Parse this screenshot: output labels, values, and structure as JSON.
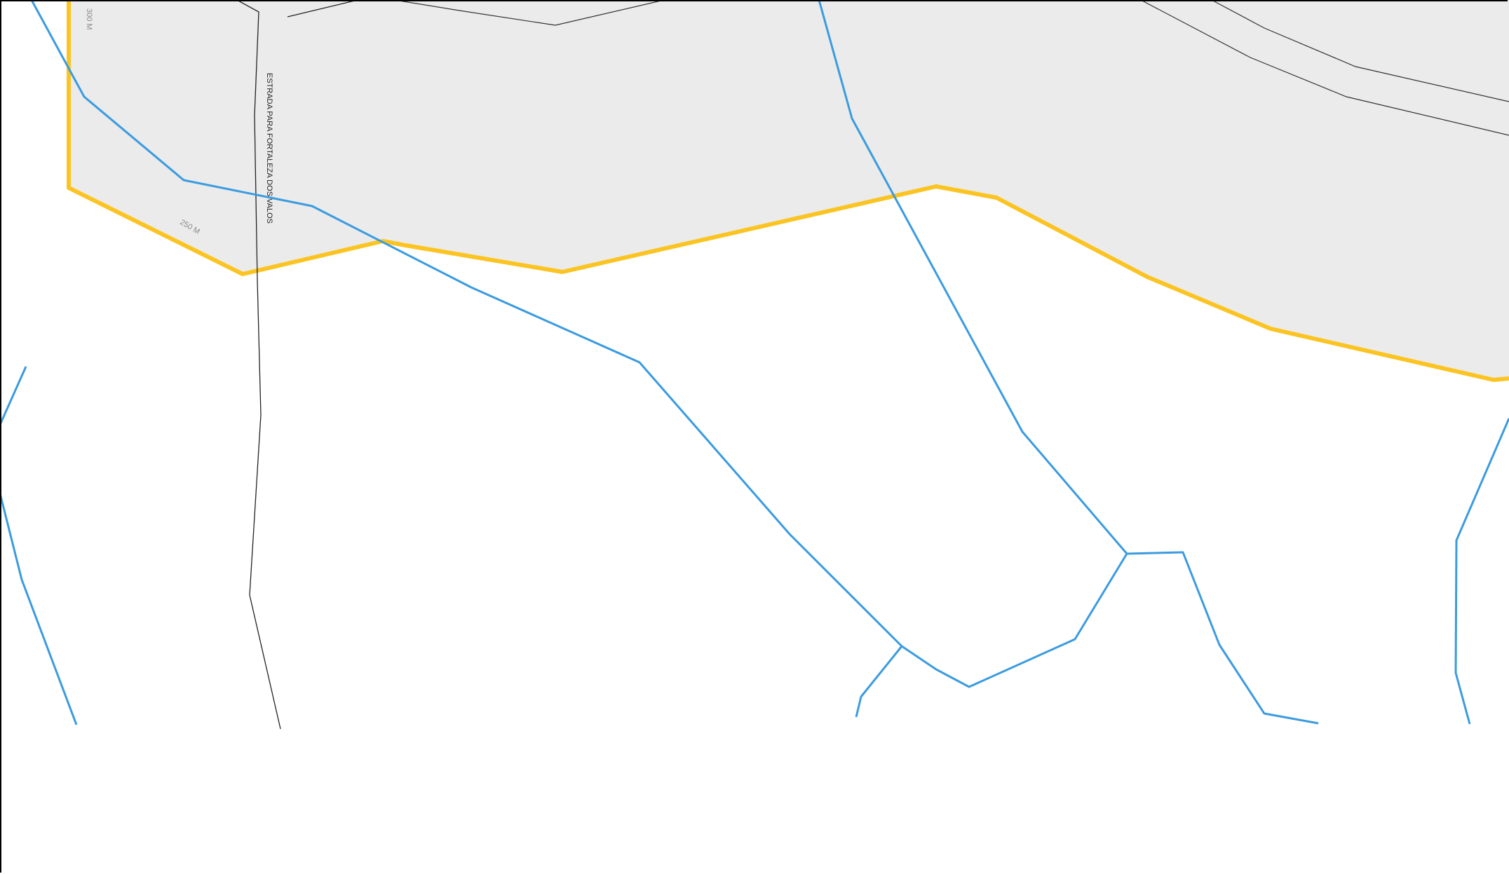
{
  "map": {
    "road_name": "ESTRADA PARA FORTALEZA DOS VALOS",
    "contour_labels": [
      "300 M",
      "250 M"
    ],
    "colors": {
      "region_fill": "#ebebeb",
      "boundary": "#fbc422",
      "stream": "#3b9be0",
      "road_edge": "#222222",
      "background": "#ffffff"
    },
    "layers": {
      "shaded_region": "shaded-area",
      "boundary_line": "yellow-boundary",
      "streams": "blue-watercourses",
      "road": "double-line-road"
    }
  }
}
